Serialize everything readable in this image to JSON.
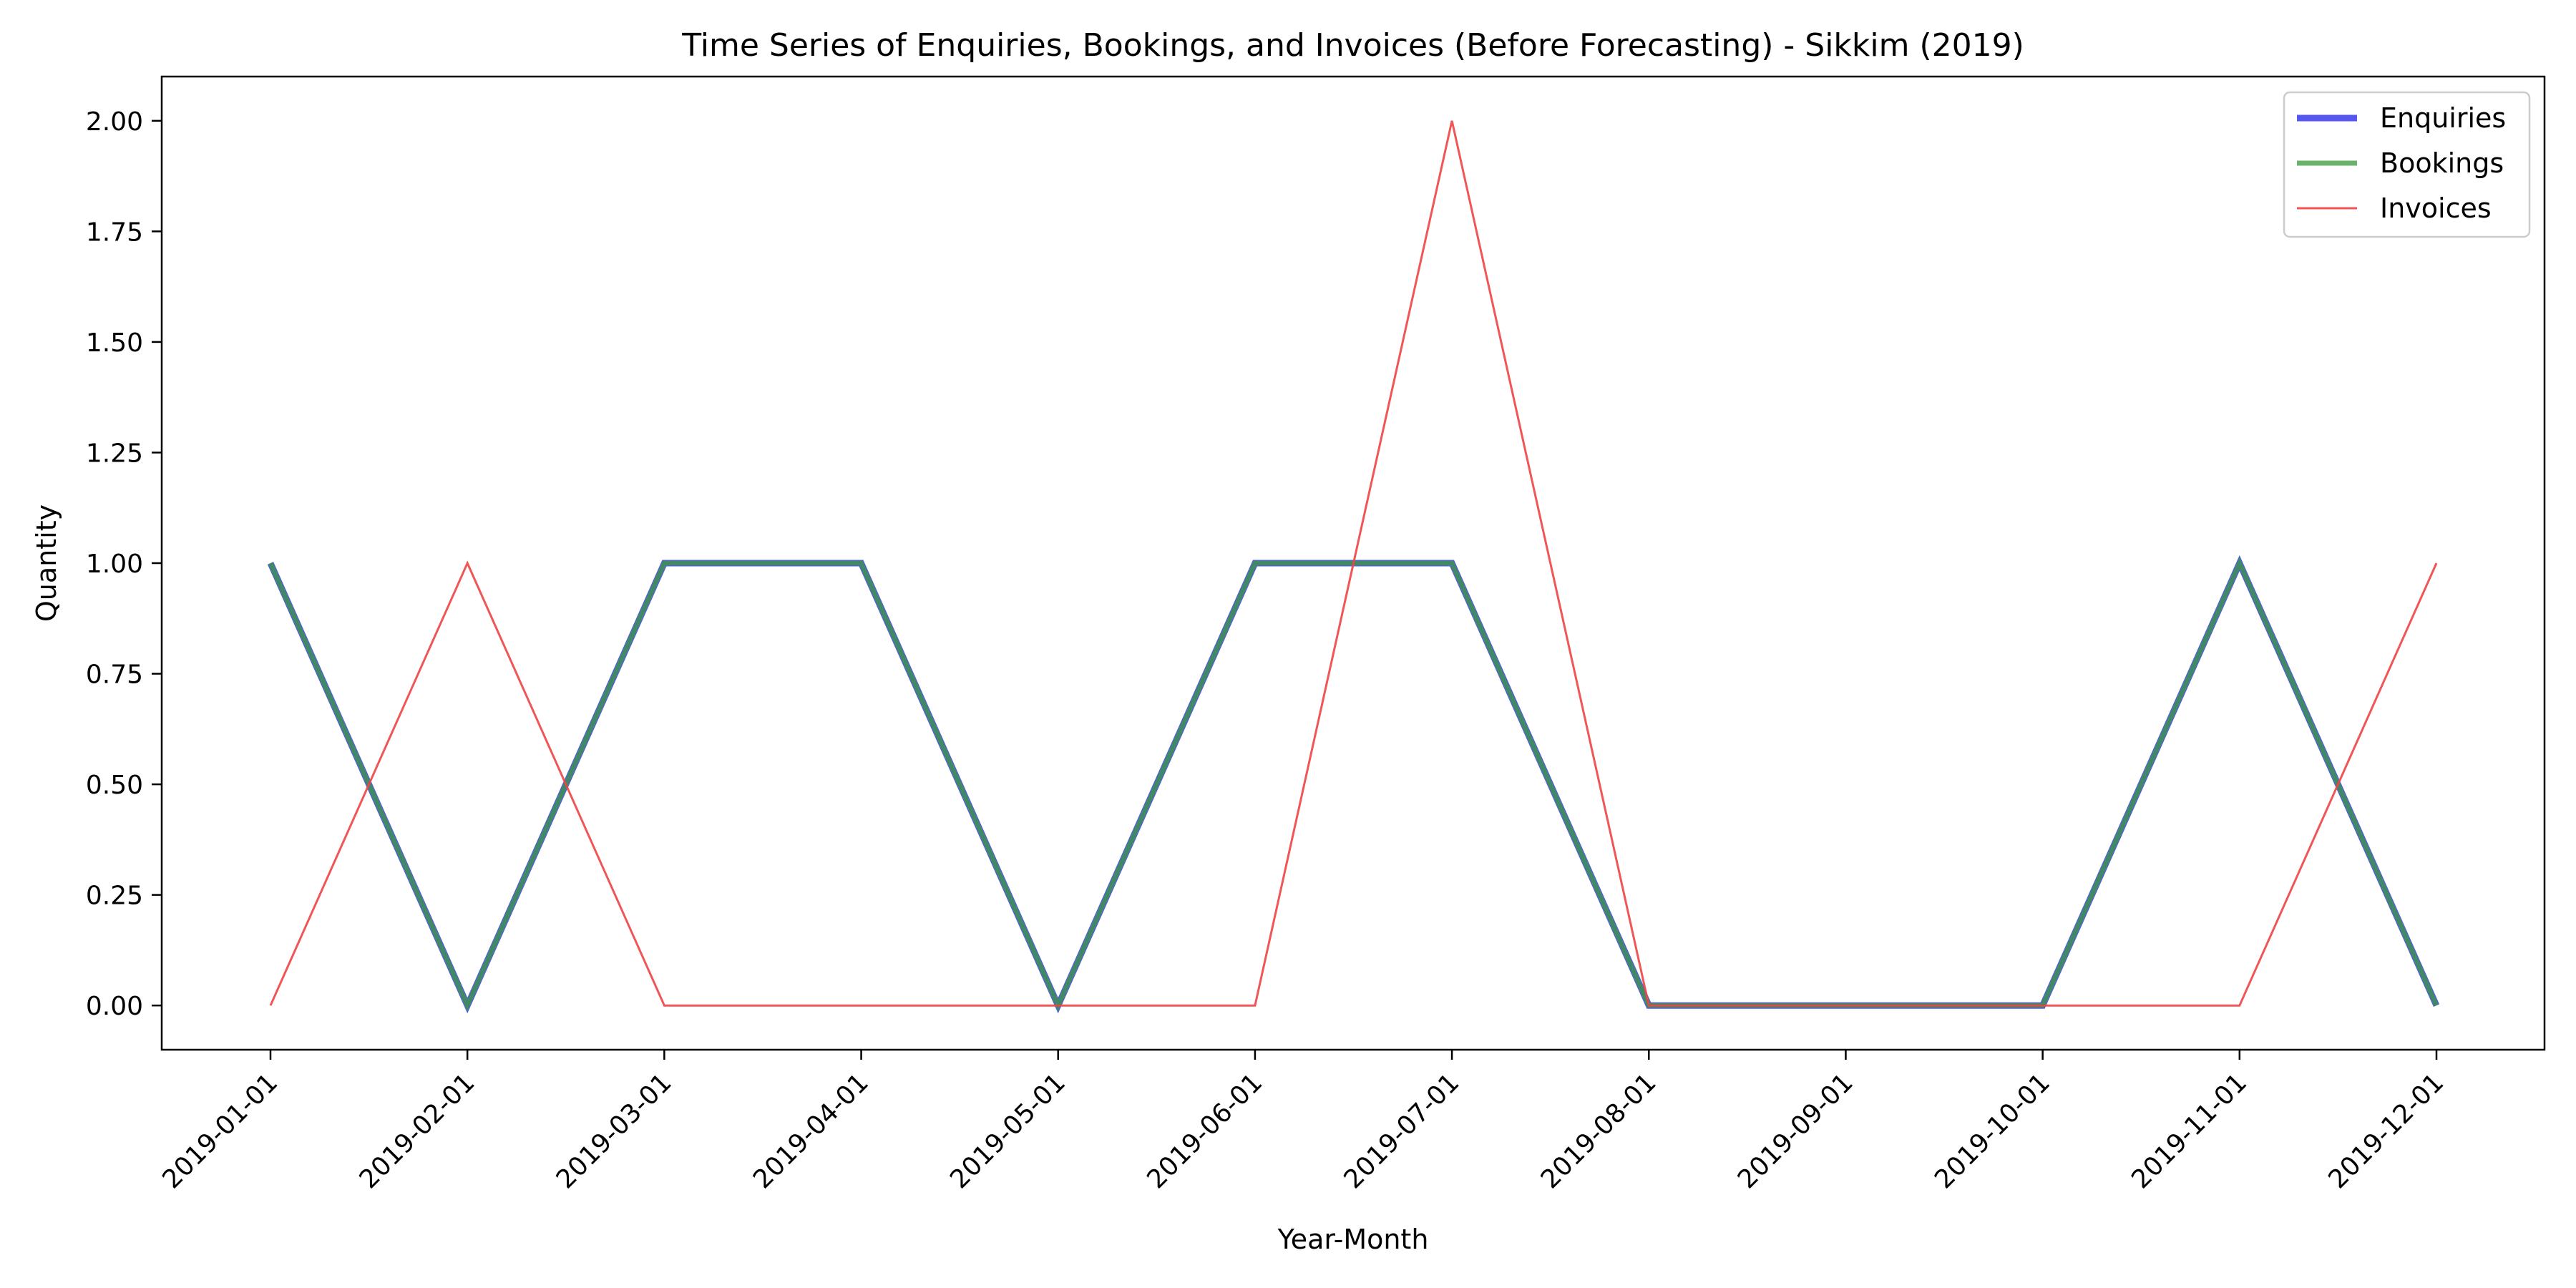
{
  "chart_data": {
    "type": "line",
    "title": "Time Series of Enquiries, Bookings, and Invoices (Before Forecasting) - Sikkim (2019)",
    "xlabel": "Year-Month",
    "ylabel": "Quantity",
    "x": [
      "2019-01-01",
      "2019-02-01",
      "2019-03-01",
      "2019-04-01",
      "2019-05-01",
      "2019-06-01",
      "2019-07-01",
      "2019-08-01",
      "2019-09-01",
      "2019-10-01",
      "2019-11-01",
      "2019-12-01"
    ],
    "ylim": [
      -0.1,
      2.1
    ],
    "yticks": [
      "0.00",
      "0.25",
      "0.50",
      "0.75",
      "1.00",
      "1.25",
      "1.50",
      "1.75",
      "2.00"
    ],
    "grid": false,
    "legend_position": "top-right",
    "series": [
      {
        "name": "Enquiries",
        "color": "#4444ee",
        "values": [
          1,
          0,
          1,
          1,
          0,
          1,
          1,
          0,
          0,
          0,
          1,
          0
        ]
      },
      {
        "name": "Bookings",
        "color": "#3a9a3a",
        "values": [
          1,
          0,
          1,
          1,
          0,
          1,
          1,
          0,
          0,
          0,
          1,
          0
        ]
      },
      {
        "name": "Invoices",
        "color": "#ee4444",
        "values": [
          0,
          1,
          0,
          0,
          0,
          0,
          2,
          0,
          0,
          0,
          0,
          1
        ]
      }
    ]
  }
}
